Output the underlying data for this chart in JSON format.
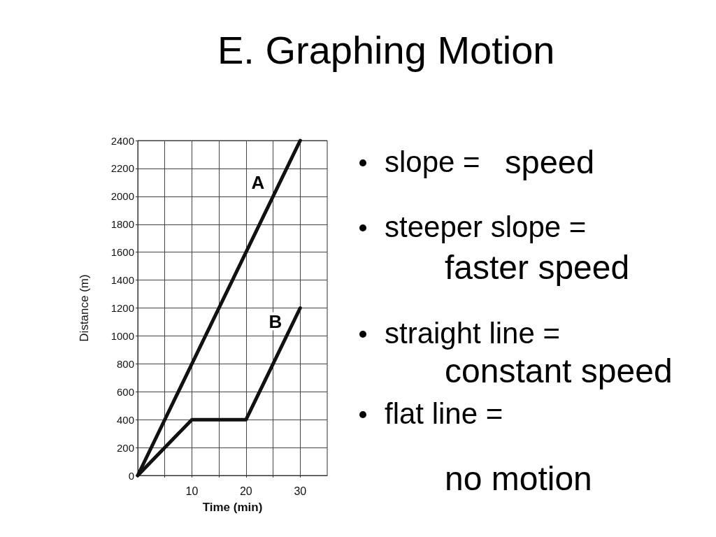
{
  "chart_data": {
    "type": "line",
    "title": "E. Graphing Motion",
    "xlabel": "Time (min)",
    "ylabel": "Distance (m)",
    "series": [
      {
        "name": "A",
        "color": "#111111",
        "x": [
          0,
          30
        ],
        "values": [
          0,
          2400
        ]
      },
      {
        "name": "B",
        "color": "#111111",
        "x": [
          0,
          10,
          20,
          30
        ],
        "values": [
          0,
          400,
          400,
          1200
        ]
      }
    ],
    "xlim": [
      0,
      35
    ],
    "xticks": [
      {
        "value": 5,
        "label": null
      },
      10,
      {
        "value": 15,
        "label": null
      },
      20,
      {
        "value": 25,
        "label": null
      },
      30
    ],
    "ylim": [
      0,
      2400
    ],
    "yticks": [
      0,
      200,
      400,
      600,
      800,
      1000,
      1200,
      1400,
      1600,
      1800,
      2000,
      2200,
      2400
    ],
    "grid": true,
    "line_style": "solid",
    "annotations": [
      "slope =",
      "speed",
      "steeper slope =",
      "faster speed",
      "straight line =",
      "constant speed",
      "flat line =",
      "no motion"
    ]
  }
}
